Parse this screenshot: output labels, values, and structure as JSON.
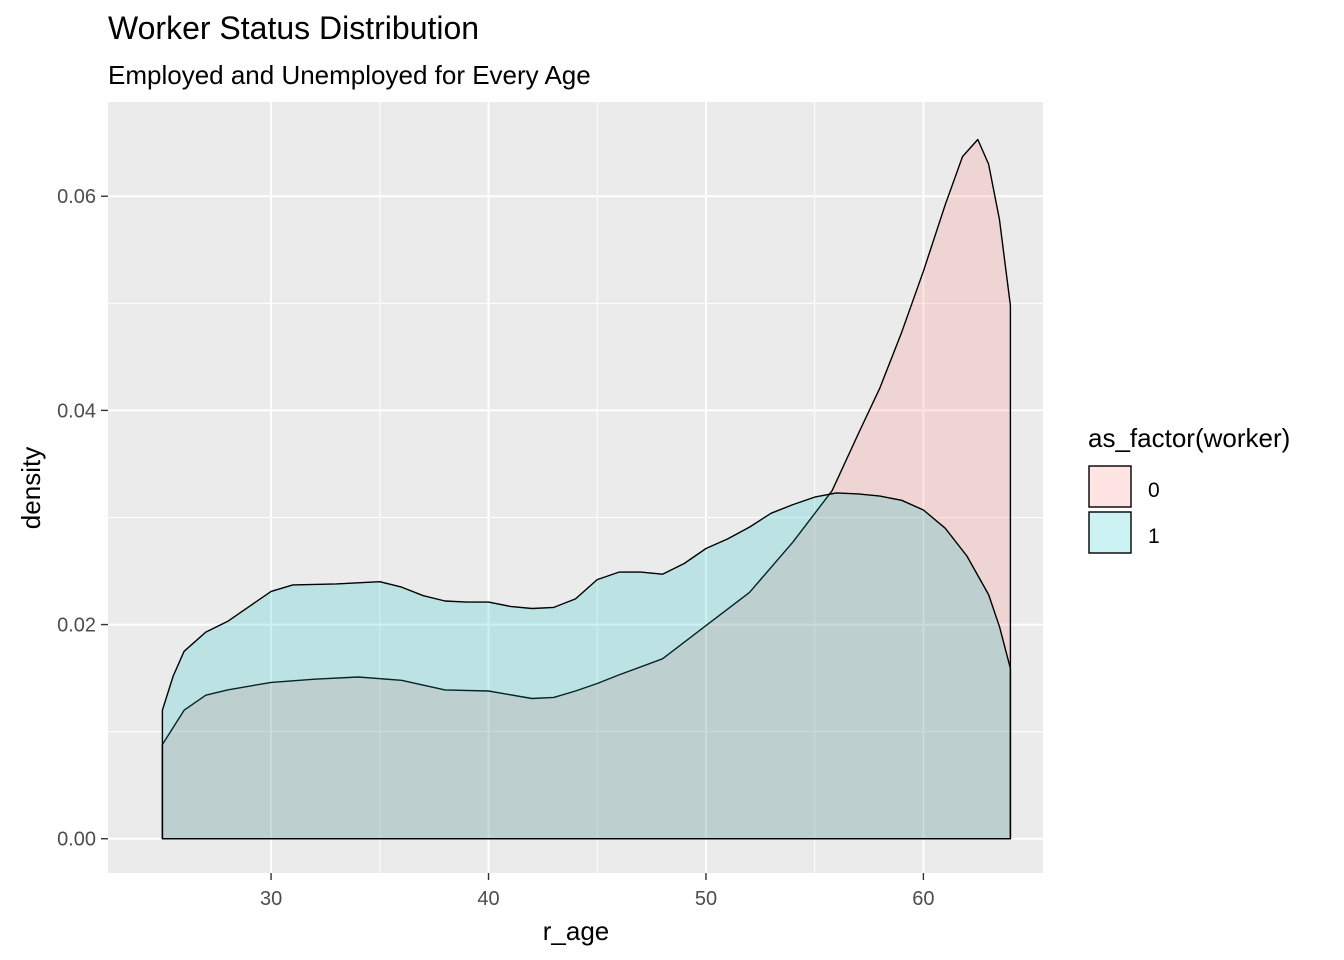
{
  "chart_data": {
    "type": "area",
    "title": "Worker Status Distribution",
    "subtitle": "Employed and Unemployed for Every Age",
    "xlabel": "r_age",
    "ylabel": "density",
    "xlim": [
      22.5,
      65.5
    ],
    "ylim": [
      -0.0032,
      0.0688
    ],
    "x_ticks": [
      30,
      40,
      50,
      60
    ],
    "x_tick_labels": [
      "30",
      "40",
      "50",
      "60"
    ],
    "y_ticks": [
      0.0,
      0.02,
      0.04,
      0.06
    ],
    "y_tick_labels": [
      "0.00",
      "0.02",
      "0.04",
      "0.06"
    ],
    "grid": true,
    "background": "#ebebeb",
    "legend": {
      "title": "as_factor(worker)",
      "position": "right"
    },
    "series": [
      {
        "name": "0",
        "color": "#f8766d",
        "x": [
          25,
          26,
          27,
          28,
          30,
          32,
          34,
          36,
          38,
          40,
          42,
          43,
          44,
          45,
          46,
          48,
          50,
          52,
          54,
          55.8,
          57,
          58,
          59,
          60,
          61,
          61.8,
          62.5,
          63,
          63.5,
          64
        ],
        "values": [
          0.0088,
          0.012,
          0.0134,
          0.0139,
          0.0146,
          0.0149,
          0.0151,
          0.0148,
          0.0139,
          0.0138,
          0.0131,
          0.0132,
          0.0138,
          0.0145,
          0.0153,
          0.0168,
          0.0199,
          0.023,
          0.0277,
          0.0325,
          0.0378,
          0.0421,
          0.0473,
          0.053,
          0.0592,
          0.0637,
          0.0653,
          0.063,
          0.0578,
          0.0498
        ]
      },
      {
        "name": "1",
        "color": "#00bfc4",
        "x": [
          25,
          25.5,
          26,
          27,
          28,
          29,
          30,
          31,
          33,
          35,
          36,
          37,
          38,
          39,
          40,
          41,
          42,
          43,
          44,
          45,
          46,
          47,
          48,
          49,
          50,
          51,
          52,
          53,
          54,
          55,
          56,
          57,
          58,
          59,
          60,
          61,
          62,
          63,
          63.5,
          64
        ],
        "values": [
          0.012,
          0.0152,
          0.0175,
          0.0193,
          0.0203,
          0.0217,
          0.0231,
          0.0237,
          0.0238,
          0.024,
          0.0235,
          0.0227,
          0.0222,
          0.0221,
          0.0221,
          0.0217,
          0.0215,
          0.0216,
          0.0224,
          0.0242,
          0.0249,
          0.0249,
          0.0247,
          0.0257,
          0.0271,
          0.028,
          0.0291,
          0.0304,
          0.0312,
          0.0319,
          0.0323,
          0.0322,
          0.032,
          0.0316,
          0.0307,
          0.029,
          0.0264,
          0.0228,
          0.0198,
          0.0159
        ]
      }
    ]
  }
}
